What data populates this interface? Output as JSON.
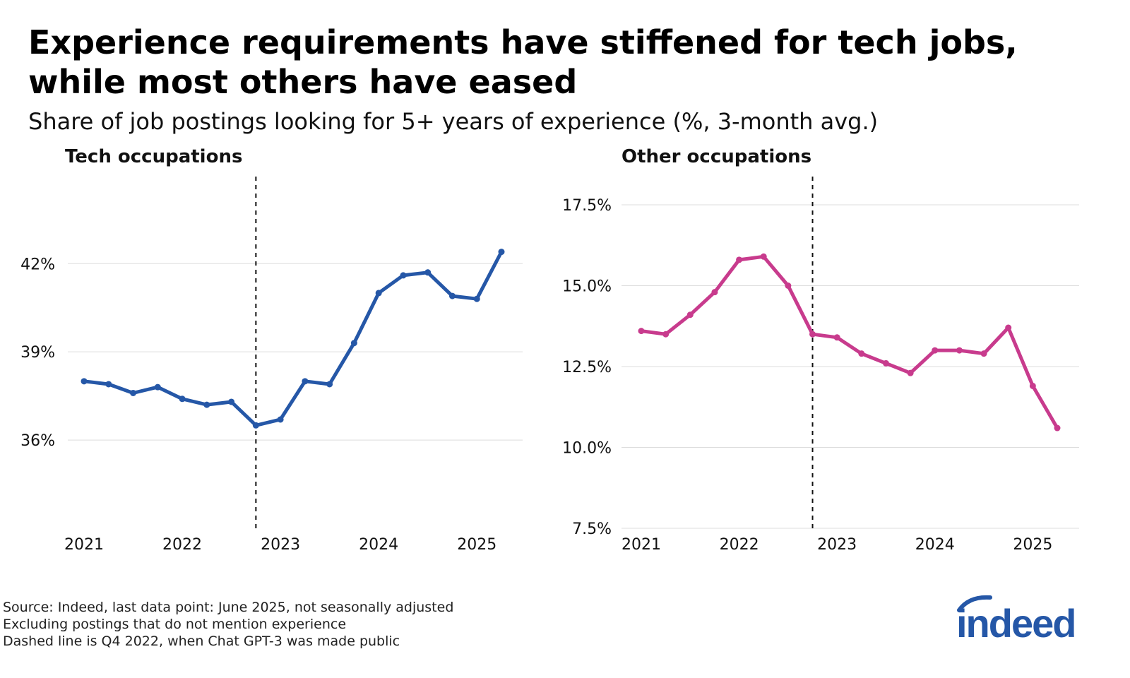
{
  "title": "Experience requirements have stiffened for tech jobs, while most others have eased",
  "subtitle": "Share of job postings looking for 5+ years of experience (%, 3-month avg.)",
  "footnotes": [
    "Source: Indeed, last data point: June 2025, not seasonally adjusted",
    "Excluding postings that do not mention experience",
    "Dashed line is Q4 2022, when Chat GPT-3 was made public"
  ],
  "logo": {
    "text": "indeed",
    "color": "#2557a7"
  },
  "chart_data": [
    {
      "type": "line",
      "title": "Tech occupations",
      "color": "#2557a7",
      "x": [
        "2021-01",
        "2021-04",
        "2021-07",
        "2021-10",
        "2022-01",
        "2022-04",
        "2022-07",
        "2022-10",
        "2023-01",
        "2023-04",
        "2023-07",
        "2023-10",
        "2024-01",
        "2024-04",
        "2024-07",
        "2024-10",
        "2025-01",
        "2025-04"
      ],
      "values": [
        38.0,
        37.9,
        37.6,
        37.8,
        37.4,
        37.2,
        37.3,
        36.5,
        36.7,
        38.0,
        37.9,
        39.3,
        41.0,
        41.6,
        41.7,
        40.9,
        40.8,
        42.4
      ],
      "y_ticks": [
        36,
        39,
        42
      ],
      "y_tick_labels": [
        "36%",
        "39%",
        "42%"
      ],
      "x_tick_labels": [
        "2021",
        "2022",
        "2023",
        "2024",
        "2025"
      ],
      "ylim": [
        33.0,
        44.0
      ],
      "marker": "Q4 2022",
      "grid": true
    },
    {
      "type": "line",
      "title": "Other occupations",
      "color": "#c83b8d",
      "x": [
        "2021-01",
        "2021-04",
        "2021-07",
        "2021-10",
        "2022-01",
        "2022-04",
        "2022-07",
        "2022-10",
        "2023-01",
        "2023-04",
        "2023-07",
        "2023-10",
        "2024-01",
        "2024-04",
        "2024-07",
        "2024-10",
        "2025-01",
        "2025-04"
      ],
      "values": [
        13.6,
        13.5,
        14.1,
        14.8,
        15.8,
        15.9,
        15.0,
        13.5,
        13.4,
        12.9,
        12.6,
        12.3,
        13.0,
        13.0,
        12.9,
        13.7,
        11.9,
        10.6
      ],
      "y_ticks": [
        7.5,
        10.0,
        12.5,
        15.0,
        17.5
      ],
      "y_tick_labels": [
        "7.5%",
        "10.0%",
        "12.5%",
        "15.0%",
        "17.5%"
      ],
      "x_tick_labels": [
        "2021",
        "2022",
        "2023",
        "2024",
        "2025"
      ],
      "ylim": [
        7.5,
        17.5
      ],
      "marker": "Q4 2022",
      "grid": true
    }
  ]
}
